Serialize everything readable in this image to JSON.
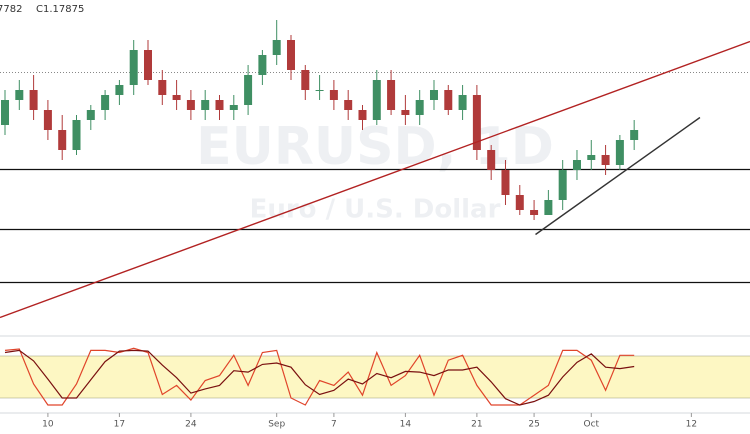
{
  "chart_data": {
    "type": "candlestick",
    "header": [
      "7782",
      "C1.17875"
    ],
    "watermark": "EURUSD, 1D",
    "subtitle": "Euro / U.S. Dollar",
    "xlim": [
      -0.35,
      52.1
    ],
    "ylim": [
      1.139,
      1.205
    ],
    "xticks": [
      {
        "value": 3,
        "label": "10"
      },
      {
        "value": 8,
        "label": "17"
      },
      {
        "value": 13,
        "label": "24"
      },
      {
        "value": 19,
        "label": "Sep"
      },
      {
        "value": 23,
        "label": "7"
      },
      {
        "value": 28,
        "label": "14"
      },
      {
        "value": 33,
        "label": "21"
      },
      {
        "value": 37,
        "label": "25"
      },
      {
        "value": 41,
        "label": "Oct"
      },
      {
        "value": 48,
        "label": "12"
      }
    ],
    "up_color": "#3f8f63",
    "down_color": "#b03a3a",
    "open": [
      1.18,
      1.185,
      1.187,
      1.183,
      1.179,
      1.175,
      1.181,
      1.183,
      1.186,
      1.188,
      1.195,
      1.189,
      1.186,
      1.185,
      1.183,
      1.185,
      1.183,
      1.184,
      1.19,
      1.194,
      1.197,
      1.191,
      1.187,
      1.187,
      1.185,
      1.183,
      1.181,
      1.189,
      1.183,
      1.182,
      1.185,
      1.187,
      1.183,
      1.186,
      1.175,
      1.171,
      1.166,
      1.163,
      1.162,
      1.165,
      1.171,
      1.173,
      1.174,
      1.172,
      1.177
    ],
    "high": [
      1.187,
      1.189,
      1.19,
      1.185,
      1.182,
      1.182,
      1.184,
      1.187,
      1.189,
      1.197,
      1.197,
      1.191,
      1.189,
      1.187,
      1.187,
      1.186,
      1.186,
      1.192,
      1.195,
      1.201,
      1.198,
      1.192,
      1.19,
      1.189,
      1.187,
      1.184,
      1.191,
      1.191,
      1.186,
      1.187,
      1.189,
      1.188,
      1.188,
      1.188,
      1.176,
      1.173,
      1.168,
      1.165,
      1.167,
      1.173,
      1.175,
      1.177,
      1.176,
      1.178,
      1.181
    ],
    "low": [
      1.178,
      1.183,
      1.181,
      1.177,
      1.173,
      1.174,
      1.179,
      1.181,
      1.184,
      1.186,
      1.188,
      1.184,
      1.183,
      1.181,
      1.181,
      1.181,
      1.181,
      1.182,
      1.188,
      1.192,
      1.189,
      1.185,
      1.185,
      1.183,
      1.181,
      1.179,
      1.18,
      1.182,
      1.18,
      1.18,
      1.183,
      1.182,
      1.181,
      1.173,
      1.169,
      1.164,
      1.162,
      1.161,
      1.162,
      1.163,
      1.169,
      1.171,
      1.17,
      1.171,
      1.175
    ],
    "close": [
      1.185,
      1.187,
      1.183,
      1.179,
      1.175,
      1.181,
      1.183,
      1.186,
      1.188,
      1.195,
      1.189,
      1.186,
      1.185,
      1.183,
      1.185,
      1.183,
      1.184,
      1.19,
      1.194,
      1.197,
      1.191,
      1.187,
      1.187,
      1.185,
      1.183,
      1.181,
      1.189,
      1.183,
      1.182,
      1.185,
      1.187,
      1.183,
      1.186,
      1.175,
      1.171,
      1.166,
      1.163,
      1.162,
      1.165,
      1.171,
      1.173,
      1.174,
      1.172,
      1.177,
      1.179
    ],
    "levels": [
      1.1711,
      1.1591,
      1.1485
    ],
    "dotted_level": 1.1905,
    "trendlines": [
      {
        "color": "#b22222",
        "x": [
          -0.35,
          52.1
        ],
        "y": [
          1.1415,
          1.1967
        ]
      },
      {
        "color": "#333333",
        "x": [
          37.1,
          48.6
        ],
        "y": [
          1.1581,
          1.1815
        ]
      }
    ],
    "stochastic": {
      "ylim": [
        0,
        100
      ],
      "band": [
        20,
        80
      ],
      "band_color": "#fdf7c3",
      "series": [
        {
          "color": "#e0452b",
          "values": [
            88,
            90,
            40,
            10,
            10,
            40,
            88,
            88,
            85,
            91,
            85,
            25,
            38,
            17,
            45,
            52,
            81,
            38,
            85,
            88,
            20,
            10,
            45,
            38,
            57,
            24,
            85,
            38,
            52,
            81,
            24,
            74,
            81,
            38,
            10,
            10,
            10,
            24,
            38,
            88,
            88,
            74,
            31,
            81,
            81
          ]
        },
        {
          "color": "#7a1010",
          "values": [
            85,
            88,
            73,
            47,
            20,
            20,
            46,
            72,
            87,
            88,
            87,
            67,
            49,
            27,
            33,
            38,
            59,
            57,
            68,
            70,
            64,
            39,
            25,
            31,
            47,
            40,
            55,
            49,
            58,
            57,
            52,
            60,
            60,
            64,
            43,
            19,
            10,
            15,
            24,
            50,
            71,
            83,
            64,
            62,
            65
          ]
        }
      ]
    }
  }
}
